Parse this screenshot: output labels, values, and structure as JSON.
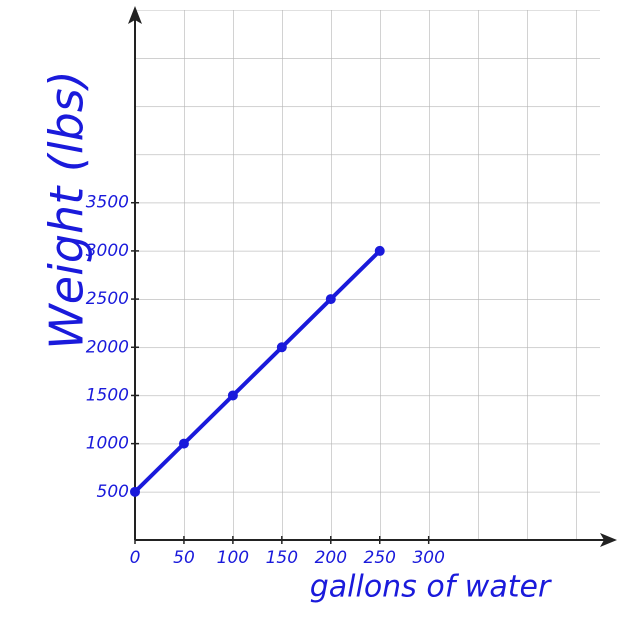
{
  "chart_data": {
    "type": "line",
    "x_label": "gallons of water",
    "y_label": "Weight (lbs)",
    "x": [
      0,
      50,
      100,
      150,
      200,
      250
    ],
    "series": [
      {
        "color": "#1a1adb",
        "values": [
          500,
          1000,
          1500,
          2000,
          2500,
          3000
        ]
      }
    ],
    "xlim": [
      0,
      475
    ],
    "ylim": [
      0,
      5500
    ],
    "xticks": [
      0,
      50,
      100,
      150,
      200,
      250,
      300
    ],
    "yticks": [
      500,
      1000,
      1500,
      2000,
      2500,
      3000,
      3500
    ]
  }
}
